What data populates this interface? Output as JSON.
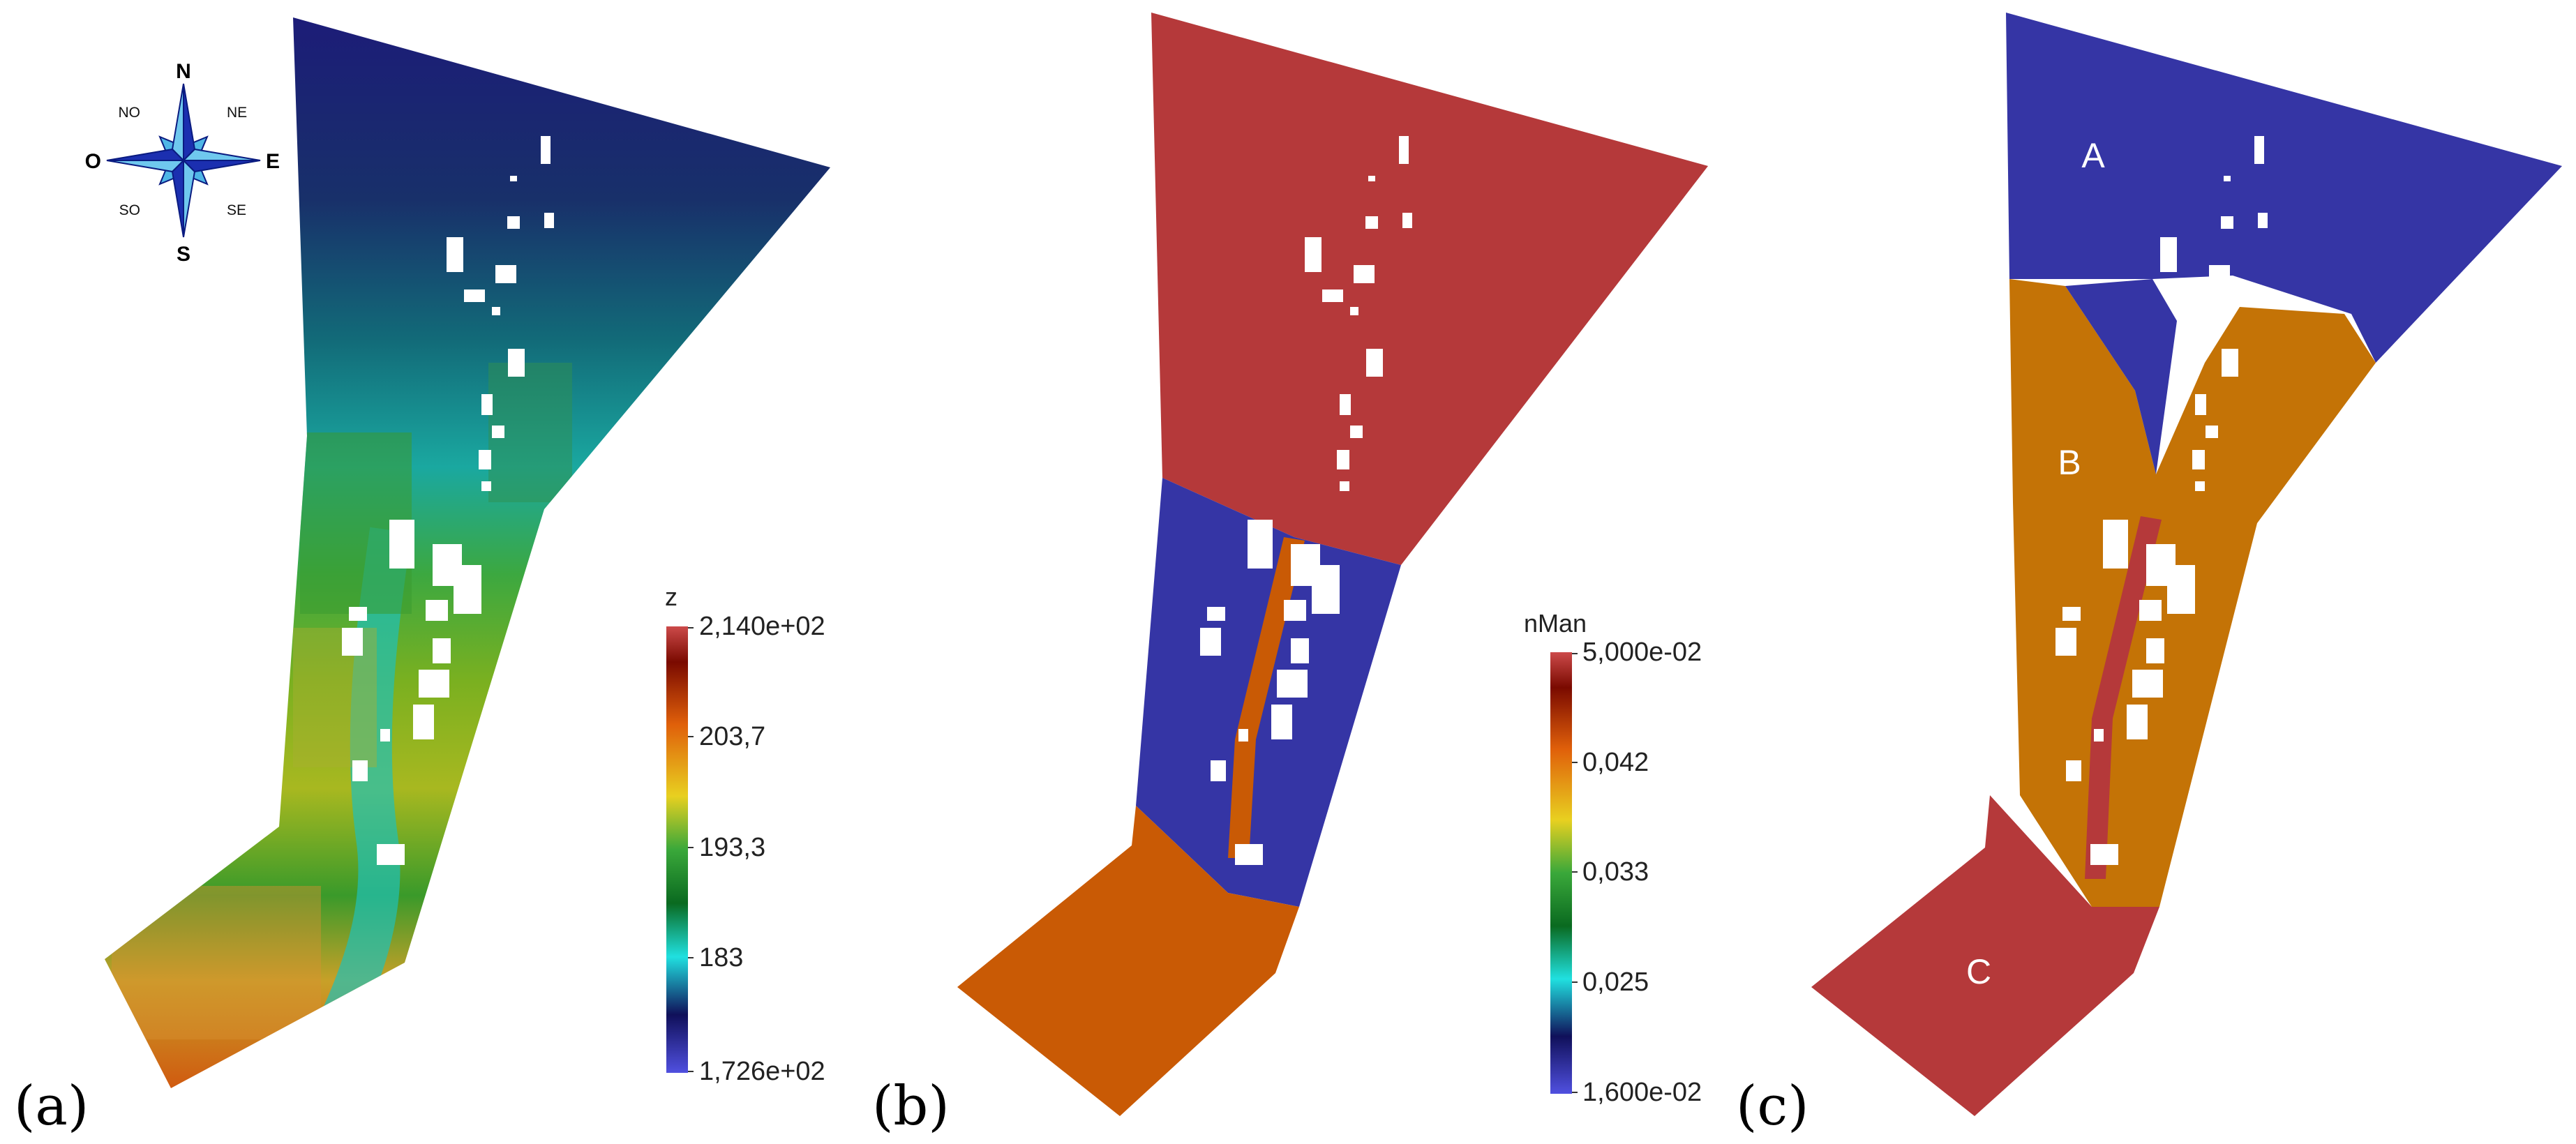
{
  "colors": {
    "zone_red": "#B5393A",
    "zone_blue": "#3535A5",
    "zone_orange": "#C95A05",
    "zone_gold": "#C47306",
    "terrain_low": "#20207A",
    "terrain_high": "#D05A10",
    "building": "#FFFFFF"
  },
  "compass": {
    "north": "N",
    "south": "S",
    "east": "E",
    "west": "O",
    "northeast": "NE",
    "northwest": "NO",
    "southeast": "SE",
    "southwest": "SO"
  },
  "panels": [
    {
      "label": "(a)",
      "legend": {
        "title": "z",
        "ticks": [
          "2,140e+02",
          "203,7",
          "193,3",
          "183",
          "1,726e+02"
        ]
      }
    },
    {
      "label": "(b)",
      "legend": {
        "title": "nMan",
        "ticks": [
          "5,000e-02",
          "0,042",
          "0,033",
          "0,025",
          "1,600e-02"
        ]
      }
    },
    {
      "label": "(c)",
      "zones": [
        "A",
        "B",
        "C"
      ]
    }
  ]
}
